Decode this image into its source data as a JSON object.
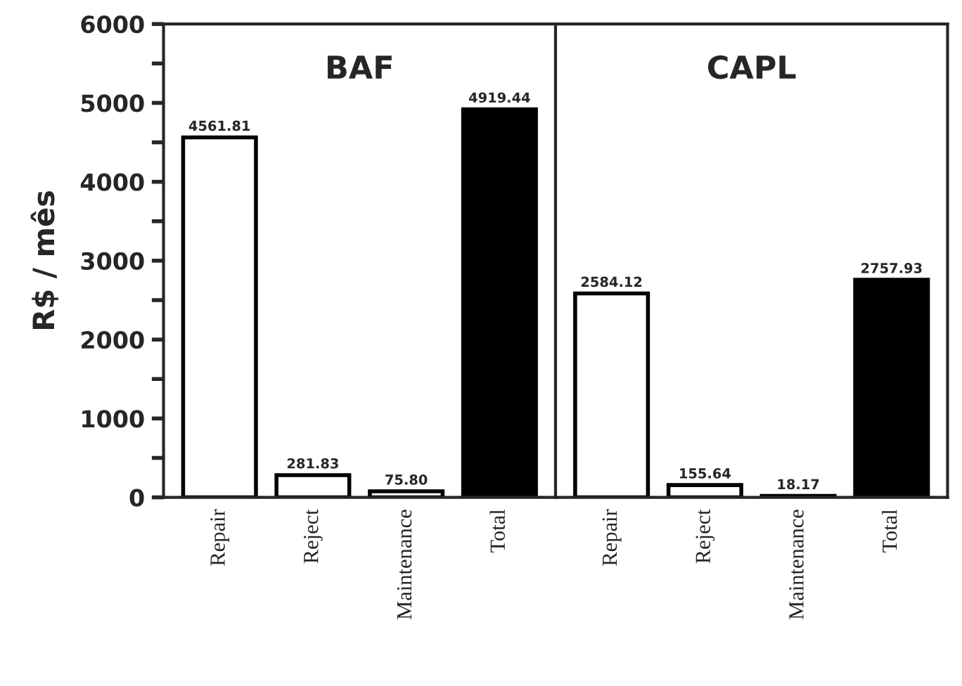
{
  "chart_data": [
    {
      "type": "bar",
      "title": "BAF",
      "ylabel": "R$ / mês",
      "categories": [
        "Repair",
        "Reject",
        "Maintenance",
        "Total"
      ],
      "values": [
        4561.81,
        281.83,
        75.8,
        4919.44
      ],
      "value_labels": [
        "4561.81",
        "281.83",
        "75.80",
        "4919.44"
      ],
      "colors": [
        "#ffffff",
        "#ffffff",
        "#ffffff",
        "#000000"
      ],
      "ylim": [
        0,
        6000
      ],
      "yticks": [
        0,
        {
          "value": 500,
          "label": null
        },
        1000,
        {
          "value": 1500,
          "label": null
        },
        2000,
        {
          "value": 2500,
          "label": null
        },
        3000,
        {
          "value": 3500,
          "label": null
        },
        4000,
        {
          "value": 4500,
          "label": null
        },
        5000,
        {
          "value": 5500,
          "label": null
        },
        6000
      ]
    },
    {
      "type": "bar",
      "title": "CAPL",
      "categories": [
        "Repair",
        "Reject",
        "Maintenance",
        "Total"
      ],
      "values": [
        2584.12,
        155.64,
        18.17,
        2757.93
      ],
      "value_labels": [
        "2584.12",
        "155.64",
        "18.17",
        "2757.93"
      ],
      "colors": [
        "#ffffff",
        "#ffffff",
        "#ffffff",
        "#000000"
      ],
      "ylim": [
        0,
        6000
      ],
      "tick_labels": "x"
    }
  ]
}
